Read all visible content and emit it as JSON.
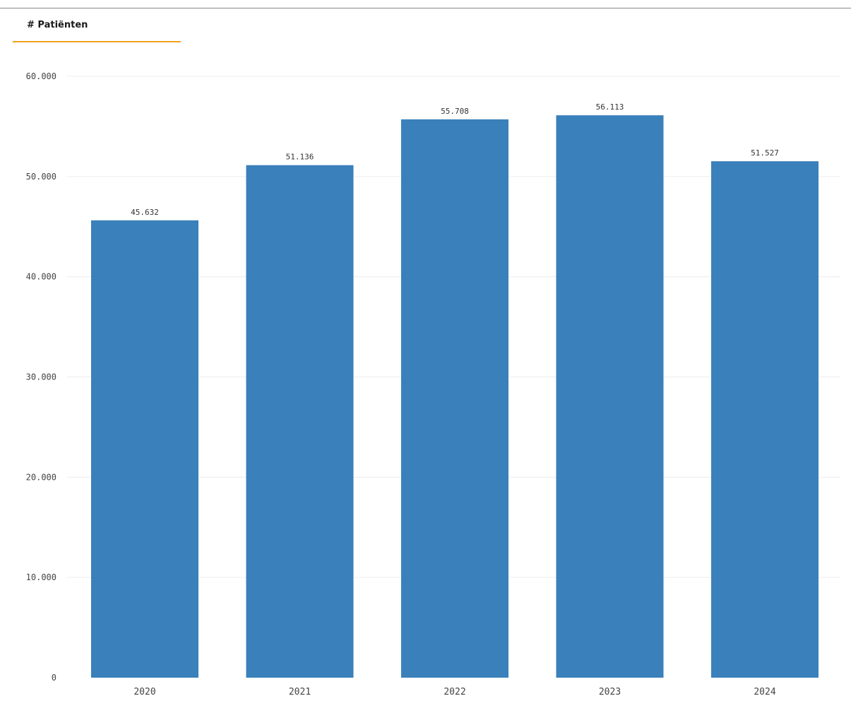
{
  "header": {
    "tab_label": "# Patiënten"
  },
  "colors": {
    "bar": "#3a80bb",
    "tab_accent": "#f0a020"
  },
  "chart_data": {
    "type": "bar",
    "title": "",
    "xlabel": "",
    "ylabel": "",
    "categories": [
      "2020",
      "2021",
      "2022",
      "2023",
      "2024"
    ],
    "values": [
      45632,
      51136,
      55708,
      56113,
      51527
    ],
    "value_labels": [
      "45.632",
      "51.136",
      "55.708",
      "56.113",
      "51.527"
    ],
    "yticks": [
      0,
      10000,
      20000,
      30000,
      40000,
      50000,
      60000
    ],
    "ytick_labels": [
      "0",
      "10.000",
      "20.000",
      "30.000",
      "40.000",
      "50.000",
      "60.000"
    ],
    "ylim": [
      0,
      60000
    ],
    "grid": true,
    "legend": "none"
  }
}
